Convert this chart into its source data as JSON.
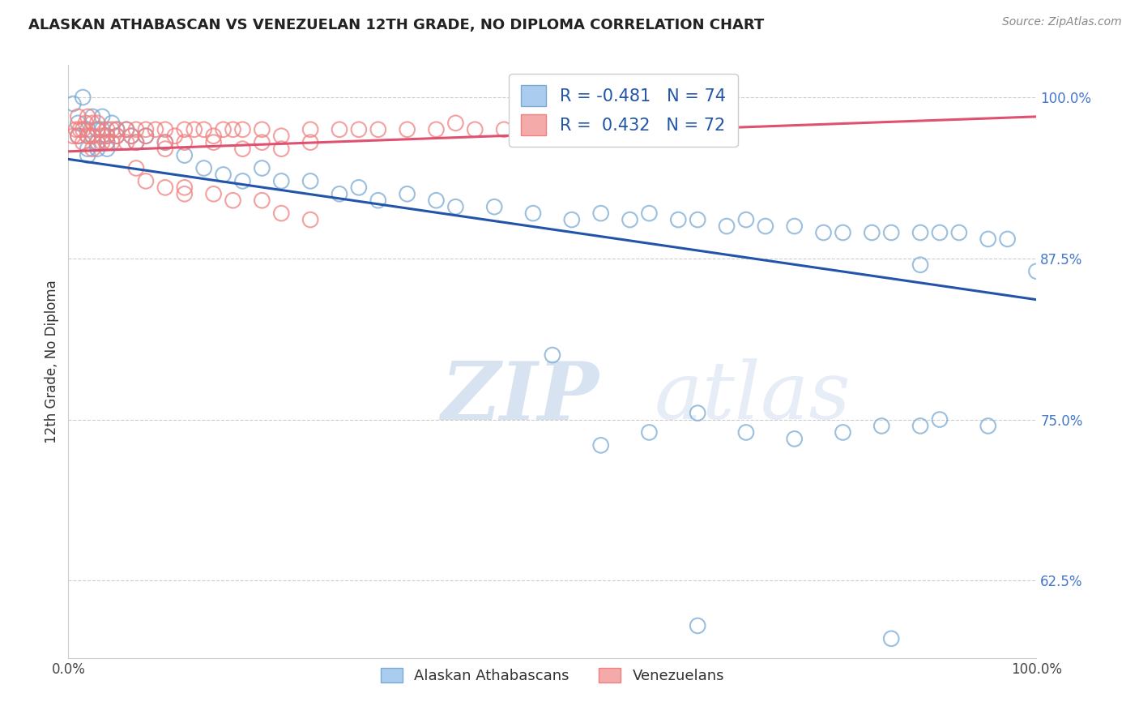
{
  "title": "ALASKAN ATHABASCAN VS VENEZUELAN 12TH GRADE, NO DIPLOMA CORRELATION CHART",
  "source": "Source: ZipAtlas.com",
  "ylabel": "12th Grade, No Diploma",
  "legend_label_blue": "Alaskan Athabascans",
  "legend_label_pink": "Venezuelans",
  "r_blue": -0.481,
  "n_blue": 74,
  "r_pink": 0.432,
  "n_pink": 72,
  "blue_edge_color": "#7AAAD4",
  "blue_line_color": "#2255AA",
  "pink_edge_color": "#F08080",
  "pink_line_color": "#E05070",
  "xlim": [
    0.0,
    1.0
  ],
  "ylim": [
    0.565,
    1.025
  ],
  "yticks": [
    0.625,
    0.75,
    0.875,
    1.0
  ],
  "ytick_labels": [
    "62.5%",
    "75.0%",
    "87.5%",
    "100.0%"
  ],
  "xticks": [
    0.0,
    0.25,
    0.5,
    0.75,
    1.0
  ],
  "xtick_labels": [
    "0.0%",
    "",
    "",
    "",
    "100.0%"
  ],
  "blue_x": [
    0.005,
    0.01,
    0.01,
    0.015,
    0.02,
    0.02,
    0.02,
    0.025,
    0.025,
    0.03,
    0.03,
    0.03,
    0.035,
    0.035,
    0.04,
    0.04,
    0.04,
    0.045,
    0.05,
    0.05,
    0.06,
    0.065,
    0.07,
    0.08,
    0.1,
    0.12,
    0.14,
    0.16,
    0.18,
    0.2,
    0.22,
    0.25,
    0.28,
    0.3,
    0.32,
    0.35,
    0.38,
    0.4,
    0.44,
    0.48,
    0.52,
    0.55,
    0.58,
    0.6,
    0.63,
    0.65,
    0.68,
    0.7,
    0.72,
    0.75,
    0.78,
    0.8,
    0.83,
    0.85,
    0.88,
    0.9,
    0.92,
    0.95,
    0.97,
    1.0,
    0.65,
    0.7,
    0.75,
    0.8,
    0.84,
    0.88,
    0.9,
    0.95,
    0.5,
    0.55,
    0.6,
    0.65,
    0.85,
    0.88
  ],
  "blue_y": [
    0.995,
    0.98,
    0.97,
    1.0,
    0.975,
    0.96,
    0.955,
    0.97,
    0.985,
    0.975,
    0.965,
    0.96,
    0.985,
    0.975,
    0.97,
    0.965,
    0.96,
    0.98,
    0.975,
    0.97,
    0.975,
    0.97,
    0.965,
    0.97,
    0.965,
    0.955,
    0.945,
    0.94,
    0.935,
    0.945,
    0.935,
    0.935,
    0.925,
    0.93,
    0.92,
    0.925,
    0.92,
    0.915,
    0.915,
    0.91,
    0.905,
    0.91,
    0.905,
    0.91,
    0.905,
    0.905,
    0.9,
    0.905,
    0.9,
    0.9,
    0.895,
    0.895,
    0.895,
    0.895,
    0.895,
    0.895,
    0.895,
    0.89,
    0.89,
    0.865,
    0.755,
    0.74,
    0.735,
    0.74,
    0.745,
    0.745,
    0.75,
    0.745,
    0.8,
    0.73,
    0.74,
    0.59,
    0.58,
    0.87
  ],
  "pink_x": [
    0.005,
    0.008,
    0.01,
    0.01,
    0.012,
    0.015,
    0.015,
    0.018,
    0.02,
    0.02,
    0.02,
    0.025,
    0.025,
    0.025,
    0.03,
    0.03,
    0.03,
    0.035,
    0.035,
    0.04,
    0.04,
    0.04,
    0.045,
    0.045,
    0.05,
    0.05,
    0.06,
    0.06,
    0.065,
    0.07,
    0.07,
    0.08,
    0.08,
    0.09,
    0.1,
    0.1,
    0.11,
    0.12,
    0.12,
    0.13,
    0.14,
    0.15,
    0.16,
    0.17,
    0.18,
    0.2,
    0.22,
    0.25,
    0.28,
    0.3,
    0.32,
    0.35,
    0.38,
    0.4,
    0.42,
    0.45,
    0.2,
    0.25,
    0.1,
    0.15,
    0.18,
    0.22,
    0.07,
    0.08,
    0.12,
    0.15,
    0.17,
    0.2,
    0.22,
    0.25,
    0.1,
    0.12
  ],
  "pink_y": [
    0.97,
    0.975,
    0.985,
    0.97,
    0.975,
    0.975,
    0.965,
    0.98,
    0.97,
    0.985,
    0.97,
    0.98,
    0.97,
    0.96,
    0.975,
    0.98,
    0.965,
    0.97,
    0.965,
    0.975,
    0.97,
    0.965,
    0.975,
    0.965,
    0.975,
    0.97,
    0.965,
    0.975,
    0.97,
    0.975,
    0.965,
    0.97,
    0.975,
    0.975,
    0.975,
    0.965,
    0.97,
    0.975,
    0.965,
    0.975,
    0.975,
    0.97,
    0.975,
    0.975,
    0.975,
    0.975,
    0.97,
    0.975,
    0.975,
    0.975,
    0.975,
    0.975,
    0.975,
    0.98,
    0.975,
    0.975,
    0.965,
    0.965,
    0.96,
    0.965,
    0.96,
    0.96,
    0.945,
    0.935,
    0.925,
    0.925,
    0.92,
    0.92,
    0.91,
    0.905,
    0.93,
    0.93
  ],
  "watermark_zip": "ZIP",
  "watermark_atlas": "atlas",
  "background_color": "#FFFFFF",
  "grid_color": "#CCCCCC"
}
